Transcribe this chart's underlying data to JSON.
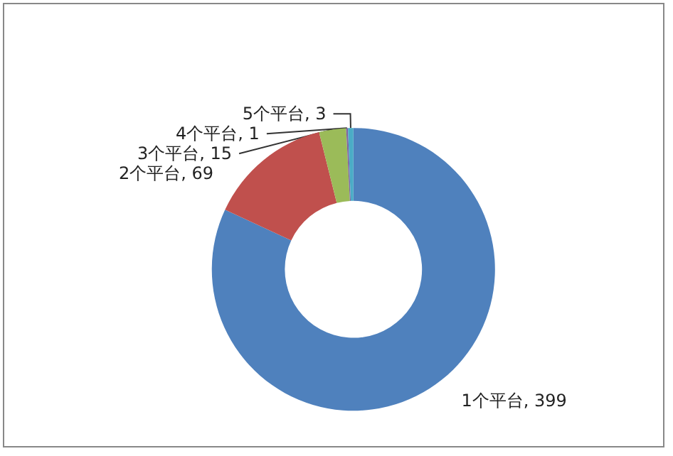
{
  "chart_data": {
    "type": "donut",
    "categories": [
      "1个平台",
      "2个平台",
      "3个平台",
      "4个平台",
      "5个平台"
    ],
    "values": [
      399,
      69,
      15,
      1,
      3
    ],
    "value_labels": [
      ", 399",
      ", 69",
      ", 15",
      ", 1",
      ", 3"
    ],
    "colors": [
      "#4f81bd",
      "#c0504d",
      "#9bbb59",
      "#8064a2",
      "#4bacc6"
    ],
    "legend": false
  }
}
